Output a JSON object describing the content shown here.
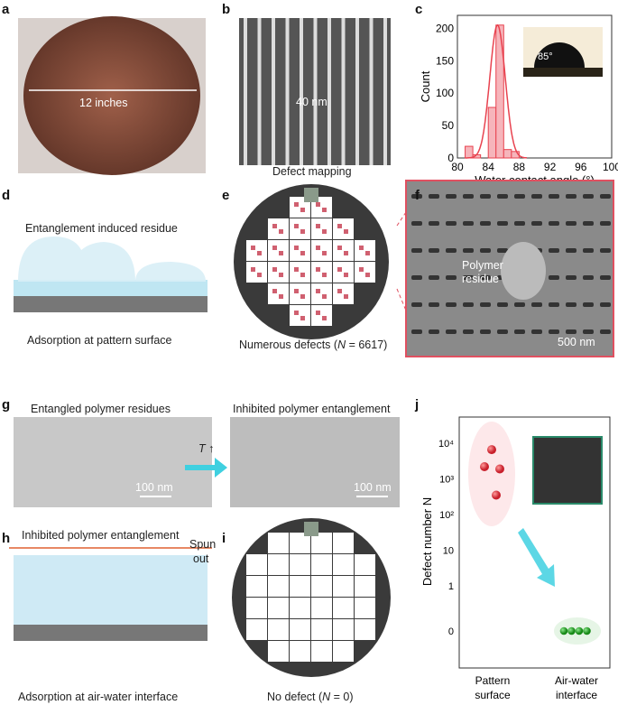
{
  "panels": {
    "a": {
      "label": "a",
      "caption": "12 inches"
    },
    "b": {
      "label": "b",
      "caption": "40 nm"
    },
    "c": {
      "label": "c",
      "inset": "85°"
    },
    "d": {
      "label": "d",
      "top": "Entanglement induced residue",
      "bottom": "Adsorption at pattern surface"
    },
    "e": {
      "label": "e",
      "title": "Defect mapping",
      "bottom_pre": "Numerous defects (",
      "bottom_n": "N",
      "bottom_post": " = 6617)"
    },
    "f": {
      "label": "f",
      "annotation_1": "Polymer",
      "annotation_2": "residue",
      "scale": "500 nm"
    },
    "g": {
      "label": "g",
      "left_title": "Entangled polymer residues",
      "right_title": "Inhibited polymer entanglement",
      "scale_left": "100 nm",
      "scale_right": "100 nm",
      "arrow_label": "T ↑"
    },
    "h": {
      "label": "h",
      "top": "Inhibited polymer entanglement",
      "side_1": "Spun",
      "side_2": "out",
      "bottom": "Adsorption at air-water interface"
    },
    "i": {
      "label": "i",
      "bottom_pre": "No defect (",
      "bottom_n": "N",
      "bottom_post": " = 0)"
    },
    "j": {
      "label": "j"
    }
  },
  "colors": {
    "red": "#e8424f",
    "green": "#2aa52a",
    "cyan": "#3fd0e0",
    "wafer": "#3a3a3a"
  },
  "chart_data": [
    {
      "type": "bar",
      "panel": "c",
      "xlabel": "Water contact angle (°)",
      "ylabel": "Count",
      "xlim": [
        80,
        100
      ],
      "ylim": [
        0,
        220
      ],
      "xticks": [
        80,
        84,
        88,
        92,
        96,
        100
      ],
      "yticks": [
        0,
        50,
        100,
        150,
        200
      ],
      "bins": [
        [
          81,
          82
        ],
        [
          82,
          83
        ],
        [
          84,
          85
        ],
        [
          85,
          86
        ],
        [
          86,
          87
        ],
        [
          87,
          88
        ]
      ],
      "values": [
        18,
        5,
        78,
        205,
        13,
        10
      ],
      "fit": {
        "type": "gaussian",
        "peak": 205,
        "center": 85.2,
        "sigma": 1.0
      }
    },
    {
      "type": "scatter",
      "panel": "j",
      "ylabel": "Defect number N",
      "yscale": "log with break",
      "yticks": [
        "10⁴",
        "10³",
        "10²",
        "10",
        "1",
        "0"
      ],
      "categories": [
        "Pattern surface",
        "Air-water interface"
      ],
      "series": [
        {
          "category": "Pattern surface",
          "values": [
            6600,
            2200,
            1900,
            350
          ]
        },
        {
          "category": "Air-water interface",
          "values": [
            0,
            0,
            0,
            0
          ]
        }
      ]
    }
  ]
}
